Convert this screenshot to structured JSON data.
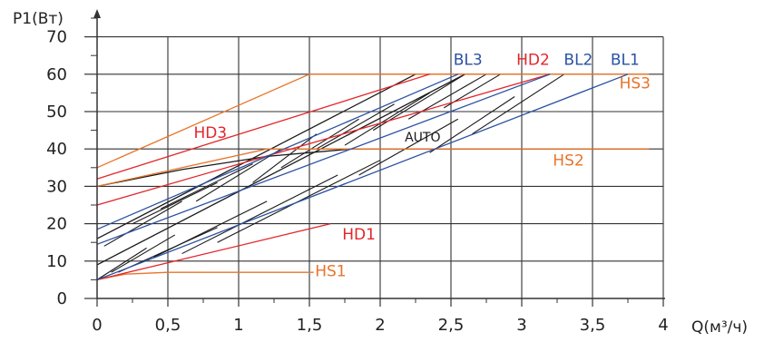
{
  "chart_data": {
    "type": "line",
    "xlabel": "Q(м³/ч)",
    "ylabel": "P1(Вт)",
    "xlim": [
      0,
      4
    ],
    "ylim": [
      0,
      75
    ],
    "grid": true,
    "x_ticks": [
      {
        "value": 0,
        "label": "0"
      },
      {
        "value": 0.5,
        "label": "0,5"
      },
      {
        "value": 1,
        "label": "1"
      },
      {
        "value": 1.5,
        "label": "1,5"
      },
      {
        "value": 2,
        "label": "2"
      },
      {
        "value": 2.5,
        "label": "2,5"
      },
      {
        "value": 3,
        "label": "3"
      },
      {
        "value": 3.5,
        "label": "3,5"
      },
      {
        "value": 4,
        "label": "4"
      }
    ],
    "y_ticks": [
      {
        "value": 0,
        "label": "0"
      },
      {
        "value": 10,
        "label": "10"
      },
      {
        "value": 20,
        "label": "20"
      },
      {
        "value": 30,
        "label": "30"
      },
      {
        "value": 40,
        "label": "40"
      },
      {
        "value": 50,
        "label": "50"
      },
      {
        "value": 60,
        "label": "60"
      },
      {
        "value": 70,
        "label": "70"
      }
    ],
    "minor_x_ticks": [
      0.25,
      0.75,
      1.25,
      1.75,
      2.25,
      2.75,
      3.25,
      3.75
    ],
    "minor_y_ticks": [
      5,
      15,
      25,
      35,
      45,
      55,
      65,
      75
    ],
    "colors": {
      "orange": "#e8742a",
      "red": "#e3262b",
      "blue": "#2a52a3",
      "black": "#1a1a1a",
      "grid": "#333333"
    },
    "series": [
      {
        "name": "HS1",
        "color": "#e8742a",
        "points": [
          [
            0,
            5
          ],
          [
            0.2,
            6.5
          ],
          [
            0.5,
            7
          ],
          [
            1.53,
            7
          ]
        ]
      },
      {
        "name": "HS2",
        "color": "#e8742a",
        "points": [
          [
            0,
            30
          ],
          [
            1.2,
            40
          ],
          [
            3.9,
            40
          ]
        ]
      },
      {
        "name": "HS3",
        "color": "#e8742a",
        "points": [
          [
            0,
            35
          ],
          [
            1.5,
            60
          ],
          [
            3.9,
            60
          ]
        ]
      },
      {
        "name": "HD1",
        "color": "#e3262b",
        "points": [
          [
            0,
            5
          ],
          [
            1.65,
            20
          ]
        ]
      },
      {
        "name": "HD2",
        "color": "#e3262b",
        "points": [
          [
            0,
            25
          ],
          [
            3.2,
            60
          ]
        ]
      },
      {
        "name": "HD3",
        "color": "#e3262b",
        "points": [
          [
            0,
            32
          ],
          [
            2.35,
            60
          ]
        ]
      },
      {
        "name": "BL1",
        "color": "#2a52a3",
        "points": [
          [
            0,
            5
          ],
          [
            3.75,
            60
          ]
        ]
      },
      {
        "name": "BL2",
        "color": "#2a52a3",
        "points": [
          [
            0,
            14.5
          ],
          [
            3.2,
            60
          ]
        ]
      },
      {
        "name": "BL3",
        "color": "#2a52a3",
        "points": [
          [
            0,
            18.5
          ],
          [
            2.55,
            60
          ]
        ]
      },
      {
        "name": "AUTO",
        "color": "#1a1a1a",
        "points": [
          [
            0,
            30
          ],
          [
            0.6,
            34.5
          ],
          [
            1.2,
            38
          ],
          [
            1.8,
            40
          ],
          [
            3.9,
            40
          ]
        ]
      },
      {
        "name": "",
        "color": "#1a1a1a",
        "points": [
          [
            0,
            9
          ],
          [
            2.6,
            60
          ]
        ]
      },
      {
        "name": "",
        "color": "#1a1a1a",
        "points": [
          [
            0,
            16
          ],
          [
            2.25,
            60
          ]
        ]
      }
    ],
    "hatch_lines": [
      [
        [
          0,
          5
        ],
        [
          0.35,
          13.5
        ]
      ],
      [
        [
          0.1,
          7
        ],
        [
          0.55,
          17
        ]
      ],
      [
        [
          0.15,
          7
        ],
        [
          0.85,
          19
        ]
      ],
      [
        [
          0.4,
          11
        ],
        [
          1.2,
          26
        ]
      ],
      [
        [
          0.6,
          12
        ],
        [
          1.7,
          33
        ]
      ],
      [
        [
          0.85,
          15
        ],
        [
          2.0,
          37
        ]
      ],
      [
        [
          0.05,
          14
        ],
        [
          0.6,
          26
        ]
      ],
      [
        [
          0.25,
          20
        ],
        [
          0.85,
          31
        ]
      ],
      [
        [
          0.45,
          24
        ],
        [
          1.1,
          36
        ]
      ],
      [
        [
          0.7,
          26
        ],
        [
          1.3,
          40
        ]
      ],
      [
        [
          1.1,
          31
        ],
        [
          1.55,
          44
        ]
      ],
      [
        [
          1.3,
          35
        ],
        [
          1.85,
          48
        ]
      ],
      [
        [
          1.55,
          40
        ],
        [
          2.1,
          52
        ]
      ],
      [
        [
          1.75,
          41
        ],
        [
          2.35,
          55
        ]
      ],
      [
        [
          1.95,
          45
        ],
        [
          2.6,
          60
        ]
      ],
      [
        [
          2.2,
          48
        ],
        [
          2.75,
          60
        ]
      ],
      [
        [
          2.45,
          51
        ],
        [
          2.85,
          60
        ]
      ],
      [
        [
          1.85,
          33
        ],
        [
          2.55,
          48
        ]
      ],
      [
        [
          2.35,
          39
        ],
        [
          2.95,
          54
        ]
      ],
      [
        [
          2.65,
          44
        ],
        [
          3.3,
          60
        ]
      ]
    ],
    "annotations": [
      {
        "text": "BL3",
        "x": 2.62,
        "y": 62.5,
        "color": "#2a52a3"
      },
      {
        "text": "HD2",
        "x": 3.08,
        "y": 62.5,
        "color": "#e3262b"
      },
      {
        "text": "BL2",
        "x": 3.4,
        "y": 62.5,
        "color": "#2a52a3"
      },
      {
        "text": "BL1",
        "x": 3.73,
        "y": 62.5,
        "color": "#2a52a3"
      },
      {
        "text": "HS3",
        "x": 3.8,
        "y": 56.2,
        "color": "#e8742a"
      },
      {
        "text": "HD3",
        "x": 0.8,
        "y": 43.0,
        "color": "#e3262b"
      },
      {
        "text": "AUTO",
        "x": 2.3,
        "y": 42.0,
        "color": "#1a1a1a"
      },
      {
        "text": "HS2",
        "x": 3.33,
        "y": 35.5,
        "color": "#e8742a"
      },
      {
        "text": "HD1",
        "x": 1.85,
        "y": 15.8,
        "color": "#e3262b"
      },
      {
        "text": "HS1",
        "x": 1.65,
        "y": 6.0,
        "color": "#e8742a"
      }
    ]
  }
}
